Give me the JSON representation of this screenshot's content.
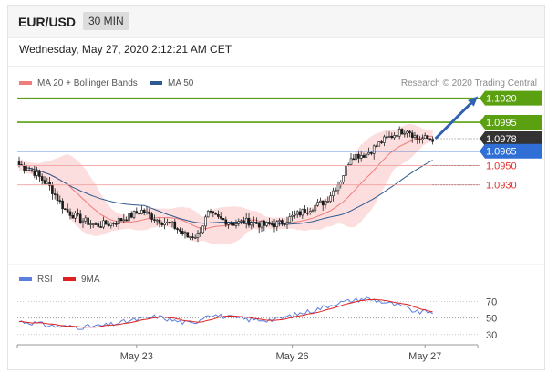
{
  "header": {
    "pair": "EUR/USD",
    "timeframe": "30 MIN"
  },
  "datetime": "Wednesday, May 27, 2020 2:12:21 AM CET",
  "legend": {
    "ma20_label": "MA 20 + Bollinger Bands",
    "ma50_label": "MA 50",
    "credit": "Research © 2020 Trading Central",
    "ma20_color": "#f07c7c",
    "ma50_color": "#2f5a8f"
  },
  "rsi_legend": {
    "rsi_label": "RSI",
    "ma_label": "9MA",
    "rsi_color": "#5b7fe0",
    "ma_color": "#e02020"
  },
  "chart_data": [
    {
      "type": "candlestick",
      "ylim": [
        1.0852,
        1.1032
      ],
      "x_tick_labels": [
        "May 23",
        "May 26",
        "May 27"
      ],
      "levels": [
        {
          "label": "1.1020",
          "value": 1.102,
          "kind": "resistance",
          "color": "#5aa010"
        },
        {
          "label": "1.0995",
          "value": 1.0995,
          "kind": "resistance",
          "color": "#5aa010"
        },
        {
          "label": "1.0978",
          "value": 1.0978,
          "kind": "last-price",
          "color": "#333333"
        },
        {
          "label": "1.0965",
          "value": 1.0965,
          "kind": "pivot",
          "color": "#2f6fd6"
        },
        {
          "label": "1.0950",
          "value": 1.095,
          "kind": "support",
          "color": "#e03030"
        },
        {
          "label": "1.0930",
          "value": 1.093,
          "kind": "support",
          "color": "#e03030"
        }
      ],
      "close_anchors": [
        [
          0,
          1.0951
        ],
        [
          6,
          1.0943
        ],
        [
          12,
          1.0928
        ],
        [
          18,
          1.0904
        ],
        [
          24,
          1.0894
        ],
        [
          30,
          1.0888
        ],
        [
          36,
          1.089
        ],
        [
          42,
          1.0896
        ],
        [
          48,
          1.0903
        ],
        [
          54,
          1.0894
        ],
        [
          60,
          1.0888
        ],
        [
          66,
          1.0876
        ],
        [
          70,
          1.0878
        ],
        [
          74,
          1.09
        ],
        [
          78,
          1.0895
        ],
        [
          84,
          1.089
        ],
        [
          90,
          1.0892
        ],
        [
          96,
          1.0888
        ],
        [
          102,
          1.089
        ],
        [
          108,
          1.0898
        ],
        [
          114,
          1.0906
        ],
        [
          120,
          1.0913
        ],
        [
          126,
          1.0935
        ],
        [
          130,
          1.096
        ],
        [
          136,
          1.0962
        ],
        [
          142,
          1.0975
        ],
        [
          148,
          1.0984
        ],
        [
          152,
          1.0988
        ],
        [
          156,
          1.0978
        ],
        [
          162,
          1.0978
        ]
      ],
      "projection": {
        "from": [
          1.0978
        ],
        "to": [
          1.102
        ],
        "color": "#2f62b0"
      }
    },
    {
      "type": "line",
      "name": "RSI",
      "ylim": [
        22,
        84
      ],
      "y_tick_labels": [
        "70",
        "50",
        "30"
      ],
      "rsi_anchors": [
        [
          0,
          46
        ],
        [
          6,
          44
        ],
        [
          14,
          40
        ],
        [
          24,
          39
        ],
        [
          34,
          41
        ],
        [
          44,
          47
        ],
        [
          54,
          52
        ],
        [
          62,
          46
        ],
        [
          68,
          43
        ],
        [
          74,
          55
        ],
        [
          82,
          51
        ],
        [
          90,
          48
        ],
        [
          100,
          48
        ],
        [
          108,
          54
        ],
        [
          116,
          60
        ],
        [
          124,
          68
        ],
        [
          130,
          71
        ],
        [
          136,
          74
        ],
        [
          142,
          70
        ],
        [
          150,
          64
        ],
        [
          156,
          57
        ],
        [
          162,
          58
        ]
      ]
    }
  ]
}
